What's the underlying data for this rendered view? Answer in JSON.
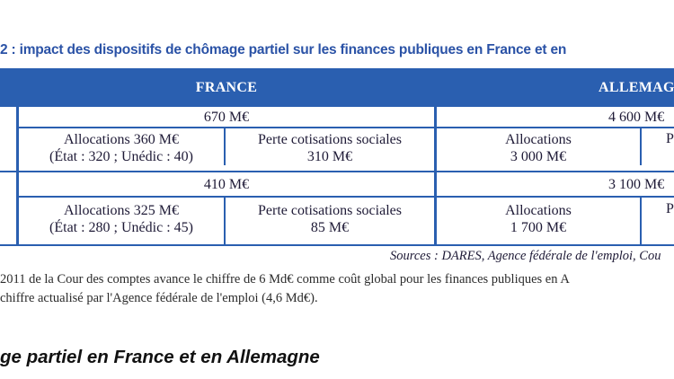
{
  "caption": "2 : impact des dispositifs de chômage partiel sur les finances publiques en France et en",
  "table": {
    "header_france": "FRANCE",
    "header_germany": "ALLEMAGNE",
    "row1": {
      "fr_total": "670 M€",
      "de_total": "4 600 M€",
      "fr_alloc_line1": "Allocations 360 M€",
      "fr_alloc_line2": "(État : 320 ; Unédic : 40)",
      "fr_perte_line1": "Perte cotisations sociales",
      "fr_perte_line2": "310 M€",
      "de_alloc_line1": "Allocations",
      "de_alloc_line2": "3 000 M€",
      "de_partial": "P"
    },
    "row2": {
      "fr_total": "410 M€",
      "de_total": "3 100 M€",
      "fr_alloc_line1": "Allocations 325 M€",
      "fr_alloc_line2": "(État : 280 ; Unédic : 45)",
      "fr_perte_line1": "Perte cotisations sociales",
      "fr_perte_line2": "85 M€",
      "de_alloc_line1": "Allocations",
      "de_alloc_line2": "1 700 M€",
      "de_partial": "P"
    }
  },
  "sources": "Sources : DARES, Agence fédérale de l'emploi, Cou",
  "note_line1": "2011 de la Cour des comptes avance le chiffre de 6 Md€ comme coût global pour les finances publiques en A",
  "note_line2": "chiffre actualisé par l'Agence fédérale de l'emploi (4,6 Md€).",
  "section_heading": "ge partiel en France et en Allemagne"
}
